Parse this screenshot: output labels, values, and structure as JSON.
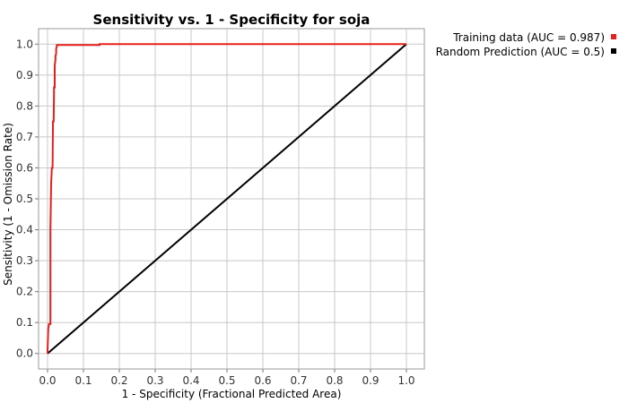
{
  "chart_data": {
    "type": "line",
    "title": "Sensitivity vs. 1 - Specificity for soja",
    "xlabel": "1 - Specificity  (Fractional Predicted Area)",
    "ylabel": "Sensitivity (1 - Omission Rate)",
    "xlim": [
      -0.025,
      1.05
    ],
    "ylim": [
      -0.05,
      1.05
    ],
    "xticks": [
      "0.0",
      "0.1",
      "0.2",
      "0.3",
      "0.4",
      "0.5",
      "0.6",
      "0.7",
      "0.8",
      "0.9",
      "1.0"
    ],
    "yticks": [
      "0.0",
      "0.1",
      "0.2",
      "0.3",
      "0.4",
      "0.5",
      "0.6",
      "0.7",
      "0.8",
      "0.9",
      "1.0"
    ],
    "grid": true,
    "legend_position": "outside-top-right",
    "series": [
      {
        "name": "Training data (AUC = 0.987)",
        "color": "#e8201c",
        "x": [
          0.0,
          0.0,
          0.002,
          0.004,
          0.008,
          0.008,
          0.008,
          0.01,
          0.012,
          0.014,
          0.015,
          0.015,
          0.017,
          0.018,
          0.018,
          0.02,
          0.02,
          0.022,
          0.022,
          0.024,
          0.024,
          0.026,
          0.026,
          0.145,
          0.145,
          1.0
        ],
        "y": [
          0.0,
          0.01,
          0.08,
          0.095,
          0.095,
          0.3,
          0.4,
          0.55,
          0.6,
          0.6,
          0.73,
          0.75,
          0.75,
          0.84,
          0.86,
          0.86,
          0.93,
          0.95,
          0.96,
          0.97,
          0.985,
          0.993,
          0.997,
          0.997,
          1.0,
          1.0
        ]
      },
      {
        "name": "Random Prediction (AUC = 0.5)",
        "color": "#000000",
        "x": [
          0.0,
          1.0
        ],
        "y": [
          0.0,
          1.0
        ]
      }
    ]
  }
}
